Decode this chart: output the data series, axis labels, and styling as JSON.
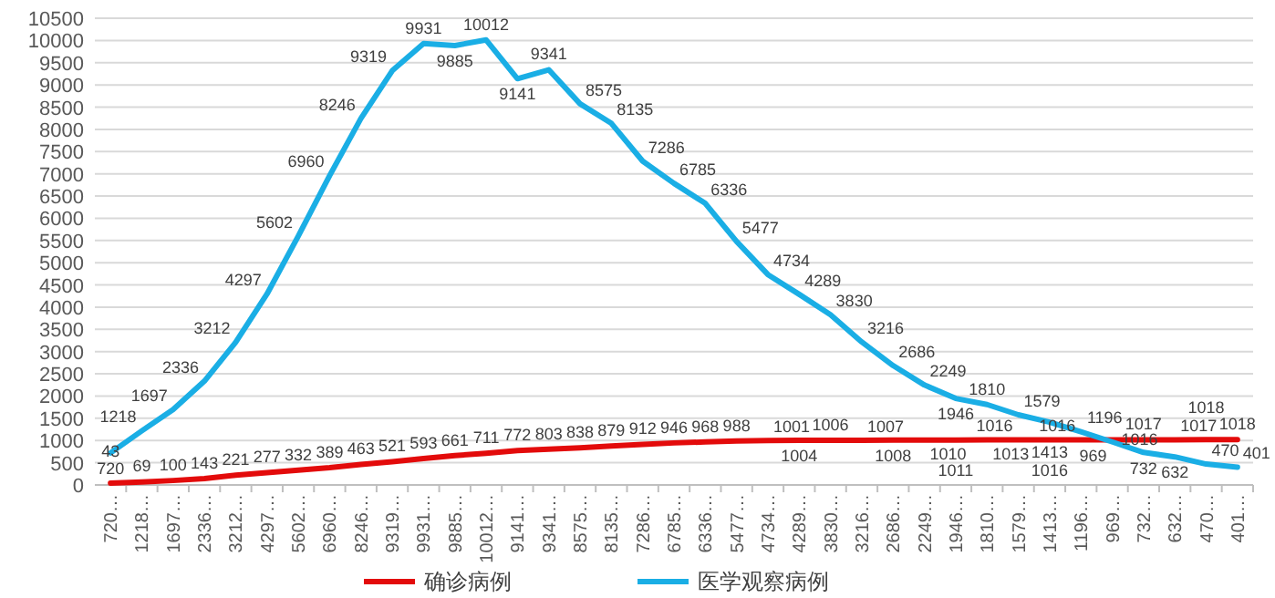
{
  "chart_data": {
    "type": "line",
    "categories": [
      "720…",
      "1218…",
      "1697…",
      "2336…",
      "3212…",
      "4297…",
      "5602…",
      "6960…",
      "8246…",
      "9319…",
      "9931…",
      "9885…",
      "10012…",
      "9141…",
      "9341…",
      "8575…",
      "8135…",
      "7286…",
      "6785…",
      "6336…",
      "5477…",
      "4734…",
      "4289…",
      "3830…",
      "3216…",
      "2686…",
      "2249…",
      "1946…",
      "1810…",
      "1579…",
      "1413…",
      "1196…",
      "969…",
      "732…",
      "632…",
      "470…",
      "401…"
    ],
    "series": [
      {
        "name": "确诊病例",
        "color": "#e30b0b",
        "values": [
          43,
          69,
          100,
          143,
          221,
          277,
          332,
          389,
          463,
          521,
          593,
          661,
          711,
          772,
          803,
          838,
          879,
          912,
          946,
          968,
          988,
          1001,
          1004,
          1006,
          1007,
          1008,
          1010,
          1011,
          1013,
          1016,
          1016,
          1016,
          1016,
          1017,
          1017,
          1018,
          1018
        ]
      },
      {
        "name": "医学观察病例",
        "color": "#1aaee5",
        "values": [
          720,
          1218,
          1697,
          2336,
          3212,
          4297,
          5602,
          6960,
          8246,
          9319,
          9931,
          9885,
          10012,
          9141,
          9341,
          8575,
          8135,
          7286,
          6785,
          6336,
          5477,
          4734,
          4289,
          3830,
          3216,
          2686,
          2249,
          1946,
          1810,
          1579,
          1413,
          1196,
          969,
          732,
          632,
          470,
          401
        ]
      }
    ],
    "ylim": [
      0,
      10500
    ],
    "yticks": [
      0,
      500,
      1000,
      1500,
      2000,
      2500,
      3000,
      3500,
      4000,
      4500,
      5000,
      5500,
      6000,
      6500,
      7000,
      7500,
      8000,
      8500,
      9000,
      9500,
      10000,
      10500
    ],
    "grid": "y",
    "legend": "bottom",
    "data_labels": true,
    "marker": "none",
    "line_style": "solid"
  }
}
